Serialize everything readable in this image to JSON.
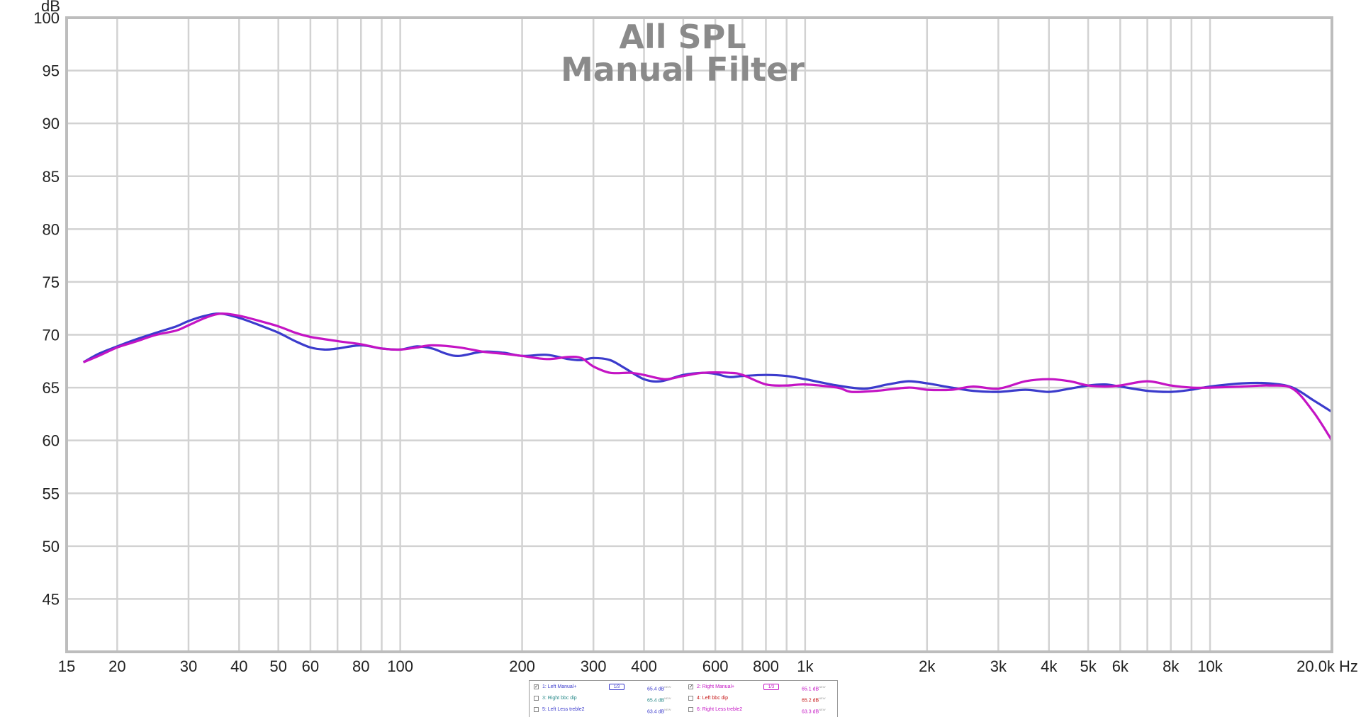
{
  "chart_data": {
    "type": "line",
    "title": "All SPL",
    "subtitle": "Manual Filter",
    "ylabel": "dB",
    "xunit": "Hz",
    "xscale": "log",
    "xlim": [
      15,
      20000
    ],
    "ylim": [
      40,
      100
    ],
    "yticks": [
      100,
      95,
      90,
      85,
      80,
      75,
      70,
      65,
      60,
      55,
      50,
      45
    ],
    "xticks": [
      {
        "v": 15,
        "label": "15"
      },
      {
        "v": 20,
        "label": "20"
      },
      {
        "v": 30,
        "label": "30"
      },
      {
        "v": 40,
        "label": "40"
      },
      {
        "v": 50,
        "label": "50"
      },
      {
        "v": 60,
        "label": "60"
      },
      {
        "v": 80,
        "label": "80"
      },
      {
        "v": 100,
        "label": "100"
      },
      {
        "v": 200,
        "label": "200"
      },
      {
        "v": 300,
        "label": "300"
      },
      {
        "v": 400,
        "label": "400"
      },
      {
        "v": 600,
        "label": "600"
      },
      {
        "v": 800,
        "label": "800"
      },
      {
        "v": 1000,
        "label": "1k"
      },
      {
        "v": 2000,
        "label": "2k"
      },
      {
        "v": 3000,
        "label": "3k"
      },
      {
        "v": 4000,
        "label": "4k"
      },
      {
        "v": 5000,
        "label": "5k"
      },
      {
        "v": 6000,
        "label": "6k"
      },
      {
        "v": 8000,
        "label": "8k"
      },
      {
        "v": 10000,
        "label": "10k"
      },
      {
        "v": 20000,
        "label": "20.0k"
      }
    ],
    "grid": true,
    "series": [
      {
        "name": "1: Left Manual+",
        "color": "#3b3bcc",
        "points": [
          [
            16.5,
            67.4
          ],
          [
            18,
            68.2
          ],
          [
            20,
            68.9
          ],
          [
            22,
            69.5
          ],
          [
            25,
            70.2
          ],
          [
            28,
            70.8
          ],
          [
            30,
            71.3
          ],
          [
            33,
            71.8
          ],
          [
            36,
            72.0
          ],
          [
            40,
            71.6
          ],
          [
            45,
            70.9
          ],
          [
            50,
            70.2
          ],
          [
            55,
            69.4
          ],
          [
            60,
            68.8
          ],
          [
            65,
            68.6
          ],
          [
            70,
            68.7
          ],
          [
            80,
            69.0
          ],
          [
            90,
            68.7
          ],
          [
            100,
            68.6
          ],
          [
            110,
            68.9
          ],
          [
            120,
            68.7
          ],
          [
            130,
            68.2
          ],
          [
            140,
            68.0
          ],
          [
            160,
            68.4
          ],
          [
            180,
            68.3
          ],
          [
            200,
            68.0
          ],
          [
            230,
            68.1
          ],
          [
            260,
            67.7
          ],
          [
            280,
            67.6
          ],
          [
            300,
            67.8
          ],
          [
            330,
            67.6
          ],
          [
            360,
            66.8
          ],
          [
            400,
            65.8
          ],
          [
            440,
            65.6
          ],
          [
            500,
            66.2
          ],
          [
            560,
            66.4
          ],
          [
            600,
            66.3
          ],
          [
            650,
            66.0
          ],
          [
            700,
            66.1
          ],
          [
            800,
            66.2
          ],
          [
            900,
            66.1
          ],
          [
            1000,
            65.8
          ],
          [
            1200,
            65.2
          ],
          [
            1400,
            64.9
          ],
          [
            1600,
            65.3
          ],
          [
            1800,
            65.6
          ],
          [
            2000,
            65.4
          ],
          [
            2300,
            65.0
          ],
          [
            2600,
            64.7
          ],
          [
            3000,
            64.6
          ],
          [
            3500,
            64.8
          ],
          [
            4000,
            64.6
          ],
          [
            4500,
            64.9
          ],
          [
            5000,
            65.2
          ],
          [
            5500,
            65.3
          ],
          [
            6000,
            65.1
          ],
          [
            7000,
            64.7
          ],
          [
            8000,
            64.6
          ],
          [
            9000,
            64.8
          ],
          [
            10000,
            65.1
          ],
          [
            12000,
            65.4
          ],
          [
            14000,
            65.4
          ],
          [
            16000,
            65.0
          ],
          [
            18000,
            63.8
          ],
          [
            20000,
            62.7
          ]
        ]
      },
      {
        "name": "2: Right Manual+",
        "color": "#c414c4",
        "points": [
          [
            16.5,
            67.4
          ],
          [
            18,
            68.0
          ],
          [
            20,
            68.8
          ],
          [
            22,
            69.3
          ],
          [
            25,
            70.0
          ],
          [
            28,
            70.4
          ],
          [
            30,
            70.9
          ],
          [
            33,
            71.6
          ],
          [
            36,
            72.0
          ],
          [
            40,
            71.8
          ],
          [
            45,
            71.3
          ],
          [
            50,
            70.8
          ],
          [
            55,
            70.2
          ],
          [
            60,
            69.8
          ],
          [
            70,
            69.4
          ],
          [
            80,
            69.1
          ],
          [
            90,
            68.7
          ],
          [
            100,
            68.6
          ],
          [
            110,
            68.8
          ],
          [
            120,
            69.0
          ],
          [
            140,
            68.8
          ],
          [
            160,
            68.4
          ],
          [
            180,
            68.2
          ],
          [
            200,
            68.0
          ],
          [
            230,
            67.7
          ],
          [
            260,
            67.9
          ],
          [
            280,
            67.8
          ],
          [
            300,
            67.0
          ],
          [
            330,
            66.4
          ],
          [
            370,
            66.4
          ],
          [
            400,
            66.2
          ],
          [
            450,
            65.8
          ],
          [
            500,
            66.1
          ],
          [
            560,
            66.4
          ],
          [
            650,
            66.4
          ],
          [
            700,
            66.2
          ],
          [
            800,
            65.3
          ],
          [
            900,
            65.2
          ],
          [
            1000,
            65.3
          ],
          [
            1200,
            65.0
          ],
          [
            1300,
            64.6
          ],
          [
            1500,
            64.7
          ],
          [
            1800,
            65.0
          ],
          [
            2000,
            64.8
          ],
          [
            2300,
            64.8
          ],
          [
            2600,
            65.1
          ],
          [
            3000,
            64.9
          ],
          [
            3500,
            65.6
          ],
          [
            4000,
            65.8
          ],
          [
            4500,
            65.6
          ],
          [
            5000,
            65.2
          ],
          [
            5500,
            65.1
          ],
          [
            6000,
            65.2
          ],
          [
            7000,
            65.6
          ],
          [
            8000,
            65.2
          ],
          [
            9000,
            65.0
          ],
          [
            10000,
            65.0
          ],
          [
            12000,
            65.1
          ],
          [
            14000,
            65.2
          ],
          [
            16000,
            64.9
          ],
          [
            18000,
            62.7
          ],
          [
            20000,
            60.0
          ]
        ]
      }
    ]
  },
  "legend": {
    "items": [
      {
        "checked": true,
        "name": "1: Left Manual+",
        "smoothing": "1/3",
        "value": "65.4 dB",
        "sup": "NEW",
        "color": "#3b3bcc"
      },
      {
        "checked": true,
        "name": "2: Right Manual+",
        "smoothing": "1/3",
        "value": "65.1 dB",
        "sup": "NEW",
        "color": "#c414c4"
      },
      {
        "checked": false,
        "name": "3: Right bbc dip",
        "smoothing": "",
        "value": "65.4 dB",
        "sup": "NEW",
        "color": "#2a8a8a"
      },
      {
        "checked": false,
        "name": "4: Left bbc dip",
        "smoothing": "",
        "value": "65.2 dB",
        "sup": "NEW",
        "color": "#c41414"
      },
      {
        "checked": false,
        "name": "5: Left Less treble2",
        "smoothing": "",
        "value": "63.4 dB",
        "sup": "NEW",
        "color": "#3b3bcc"
      },
      {
        "checked": false,
        "name": "6: Right Less treble2",
        "smoothing": "",
        "value": "63.3 dB",
        "sup": "NEW",
        "color": "#c414c4"
      }
    ]
  }
}
